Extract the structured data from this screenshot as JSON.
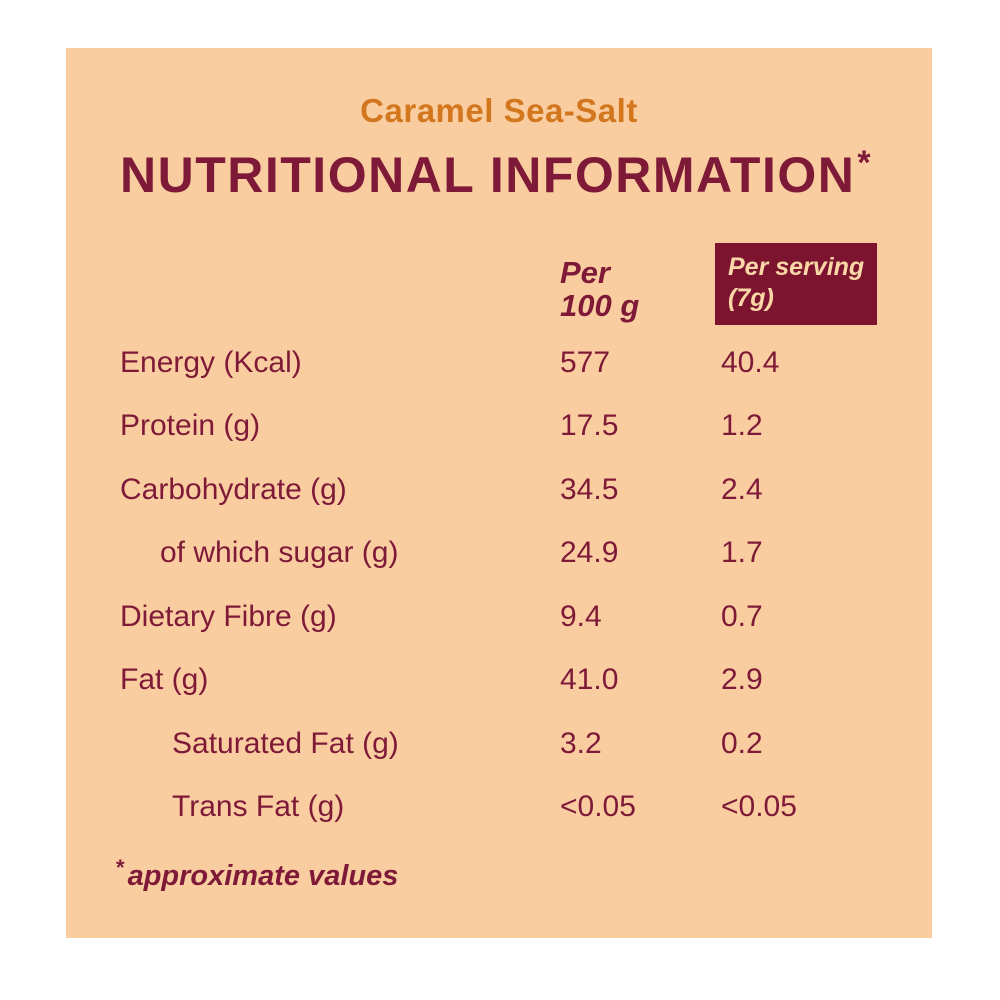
{
  "label": {
    "flavor": "Caramel Sea-Salt",
    "title": "NUTRITIONAL INFORMATION",
    "title_asterisk": "*",
    "footnote_asterisk": "*",
    "footnote": "approximate values"
  },
  "table": {
    "columns": [
      {
        "line1": "Per",
        "line2": "100 g"
      },
      {
        "line1": "Per serving",
        "line2": "(7g)"
      }
    ],
    "rows": [
      {
        "label": "Energy (Kcal)",
        "per_100g": "577",
        "per_serving": "40.4"
      },
      {
        "label": "Protein (g)",
        "per_100g": "17.5",
        "per_serving": "1.2"
      },
      {
        "label": "Carbohydrate (g)",
        "per_100g": "34.5",
        "per_serving": "2.4"
      },
      {
        "label": "of which sugar (g)",
        "per_100g": "24.9",
        "per_serving": "1.7"
      },
      {
        "label": "Dietary Fibre (g)",
        "per_100g": "9.4",
        "per_serving": "0.7"
      },
      {
        "label": "Fat (g)",
        "per_100g": "41.0",
        "per_serving": "2.9"
      },
      {
        "label": "Saturated Fat (g)",
        "per_100g": "3.2",
        "per_serving": "0.2"
      },
      {
        "label": "Trans Fat (g)",
        "per_100g": "<0.05",
        "per_serving": "<0.05"
      }
    ]
  },
  "colors": {
    "page_background": "#FFFFFF",
    "panel_background": "#FACDA1",
    "text_maroon": "#7E1A38",
    "header_box_maroon": "#7C1430",
    "header_box_text_cream": "#F9D7A6",
    "flavor_orange": "#D2771E"
  }
}
